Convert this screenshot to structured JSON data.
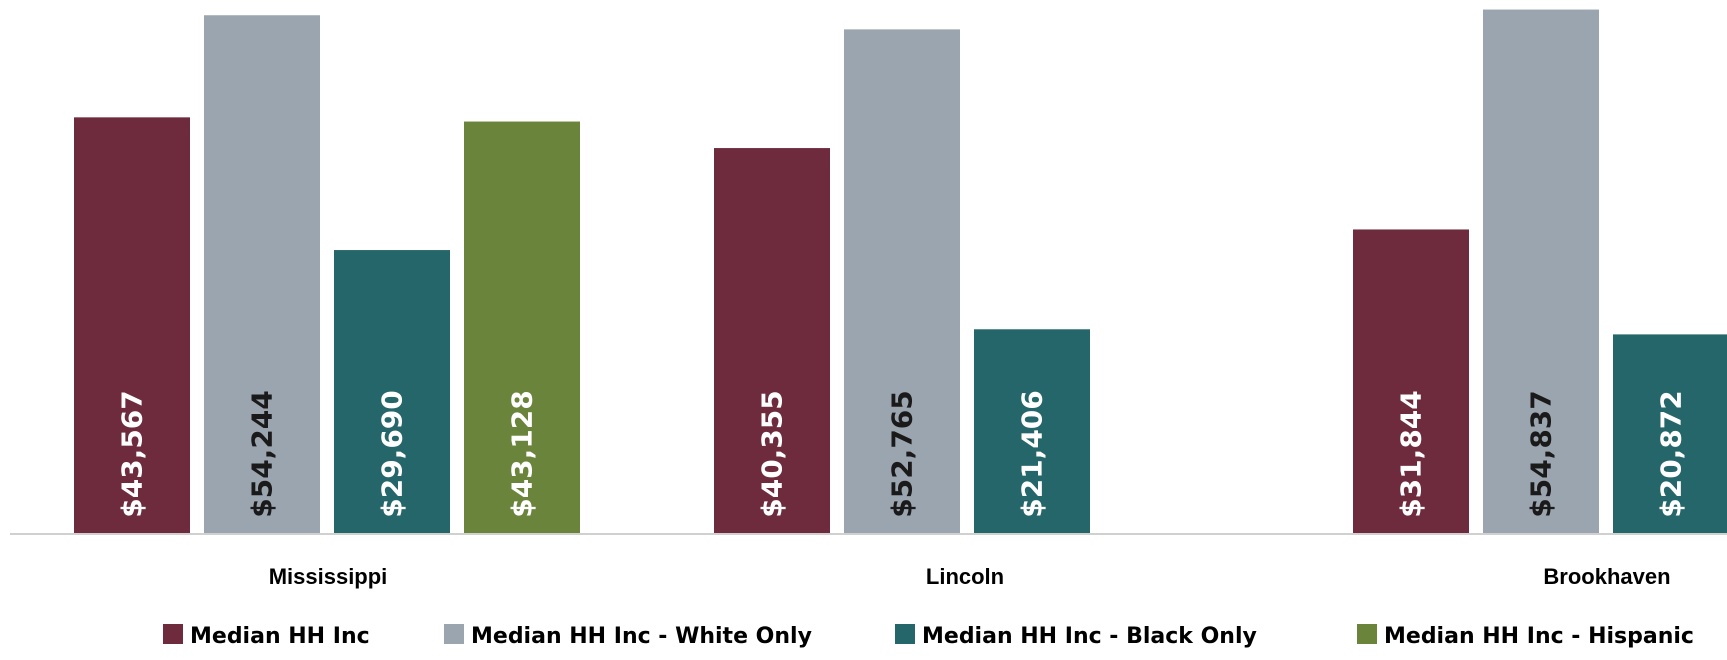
{
  "chart_data": {
    "type": "bar",
    "categories": [
      "Mississippi",
      "Lincoln",
      "Brookhaven"
    ],
    "series": [
      {
        "name": "Median HH Inc",
        "color": "#6E2B3D",
        "label_color": "#ffffff",
        "values": [
          43567,
          40355,
          31844
        ],
        "labels": [
          "$43,567",
          "$40,355",
          "$31,844"
        ]
      },
      {
        "name": "Median HH Inc - White Only",
        "color": "#9BA5AF",
        "label_color": "#1a1a1a",
        "values": [
          54244,
          52765,
          54837
        ],
        "labels": [
          "$54,244",
          "$52,765",
          "$54,837"
        ]
      },
      {
        "name": "Median HH Inc - Black Only",
        "color": "#25666B",
        "label_color": "#ffffff",
        "values": [
          29690,
          21406,
          20872
        ],
        "labels": [
          "$29,690",
          "$21,406",
          "$20,872"
        ]
      },
      {
        "name": "Median HH Inc - Hispanic",
        "color": "#6A843C",
        "label_color": "#ffffff",
        "values": [
          43128,
          null,
          null
        ],
        "labels": [
          "$43,128",
          "",
          ""
        ]
      }
    ],
    "ylim": [
      0,
      55000
    ],
    "legend_position": "bottom",
    "grid": false
  }
}
